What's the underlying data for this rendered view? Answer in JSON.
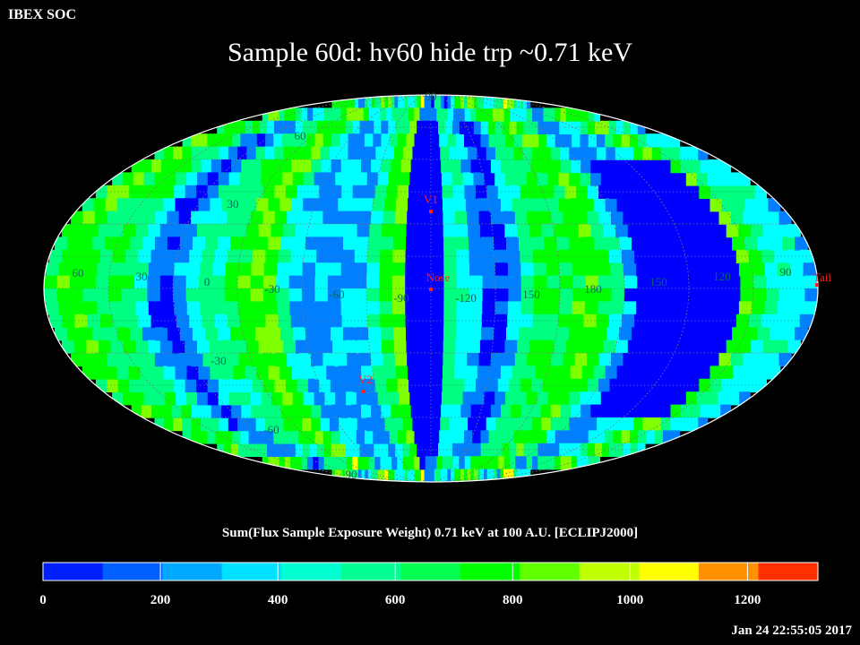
{
  "header": {
    "corner_label": "IBEX SOC",
    "title": "Sample 60d: hv60 hide trp ~0.71 keV"
  },
  "map": {
    "projection": "Mollweide (ecliptic J2000)",
    "grid": true,
    "palette": [
      "#0000ff",
      "#0080ff",
      "#00ffff",
      "#00ff80",
      "#00ff00",
      "#80ff00",
      "#ffff00",
      "#ff8000",
      "#ff2000"
    ],
    "longitude_labels": [
      "60",
      "30",
      "0",
      "-30",
      "-60",
      "-90",
      "-120",
      "150",
      "180",
      "150",
      "120",
      "90"
    ],
    "latitude_labels": [
      "90",
      "60",
      "30",
      "-30",
      "-60",
      "90"
    ],
    "markers": [
      {
        "name": "V1",
        "color": "#ff2020"
      },
      {
        "name": "Nose",
        "color": "#ff2020"
      },
      {
        "name": "V2",
        "color": "#ff2020"
      },
      {
        "name": "Tail",
        "color": "#ff2020"
      }
    ]
  },
  "colorbar": {
    "title": "Sum(Flux Sample Exposure Weight)  0.71 keV at 100 A.U. [ECLIPJ2000]",
    "min": 0,
    "max": 1320,
    "ticks": [
      "0",
      "200",
      "400",
      "600",
      "800",
      "1000",
      "1200"
    ],
    "segment_colors": [
      "#0020ff",
      "#0060ff",
      "#00a8ff",
      "#00e0ff",
      "#00ffd0",
      "#00ff90",
      "#00ff50",
      "#00ff00",
      "#60ff00",
      "#c0ff00",
      "#ffff00",
      "#ff9000",
      "#ff3000"
    ]
  },
  "footer": {
    "timestamp": "Jan 24 22:55:05 2017"
  }
}
